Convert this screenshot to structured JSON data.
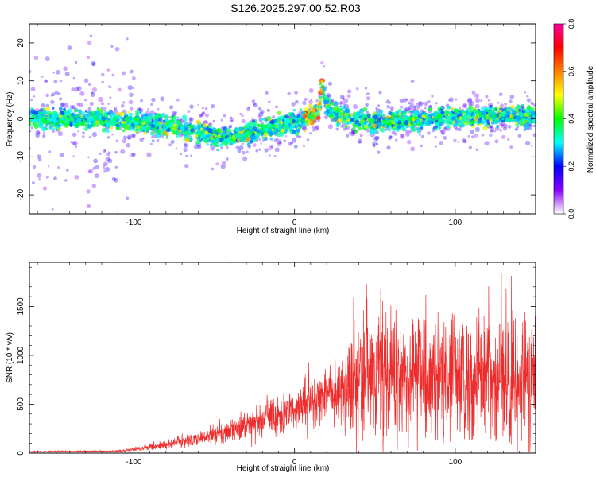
{
  "page_title": "S126.2025.297.00.52.R03",
  "chart_data": [
    {
      "type": "heatmap",
      "title": "S126.2025.297.00.52.R03",
      "xlabel": "Height of straight line (km)",
      "ylabel": "Frequency (Hz)",
      "xlim": [
        -165,
        150
      ],
      "ylim": [
        -25,
        25
      ],
      "xticks": [
        -100,
        0,
        100
      ],
      "yticks": [
        -20,
        -10,
        0,
        10,
        20
      ],
      "grid": false,
      "colorbar": {
        "label": "Normalized spectral amplitude",
        "range": [
          0.0,
          0.8
        ],
        "ticks": [
          "0.0",
          "0.2",
          "0.4",
          "0.6",
          "0.8"
        ],
        "colormap": [
          "#ffffff",
          "#8a00ff",
          "#0000ff",
          "#00ffff",
          "#00ff00",
          "#ffff00",
          "#ff8000",
          "#ff0000",
          "#ff00a0"
        ]
      },
      "ridge": {
        "x": [
          -165,
          -140,
          -100,
          -75,
          -60,
          -45,
          -30,
          -15,
          0,
          10,
          15,
          17,
          19,
          25,
          50,
          100,
          150
        ],
        "y": [
          0,
          0,
          -1,
          -2,
          -3.5,
          -5,
          -4,
          -2.5,
          -1,
          0.5,
          2,
          10,
          4,
          1,
          -1,
          0.5,
          1
        ]
      }
    },
    {
      "type": "line",
      "xlabel": "Height of straight line (km)",
      "ylabel": "SNR (10 * v/v)",
      "xlim": [
        -165,
        150
      ],
      "ylim": [
        0,
        1950
      ],
      "xticks": [
        -100,
        0,
        100
      ],
      "yticks": [
        0,
        500,
        1000,
        1500
      ],
      "series": [
        {
          "color": "#ee2c2c",
          "envelope_x": [
            -165,
            -110,
            -100,
            -80,
            -60,
            -40,
            -20,
            0,
            20,
            35,
            45,
            60,
            80,
            100,
            120,
            150
          ],
          "envelope_y": [
            15,
            20,
            40,
            90,
            150,
            230,
            330,
            460,
            600,
            720,
            800,
            790,
            740,
            770,
            760,
            750
          ]
        }
      ]
    }
  ]
}
